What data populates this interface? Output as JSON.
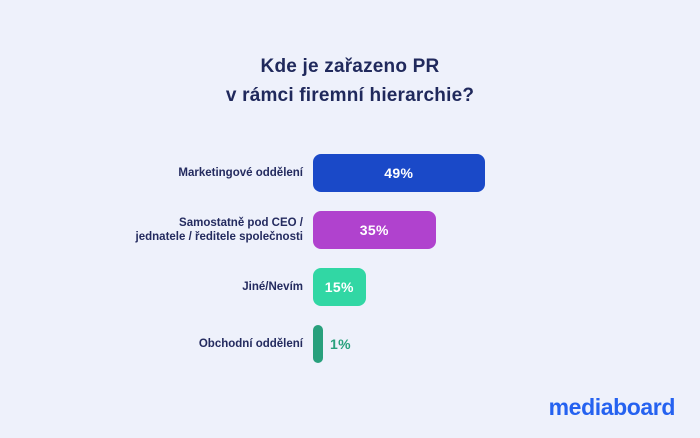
{
  "title": {
    "line1": "Kde je zařazeno PR",
    "line2": "v rámci firemní hierarchie?"
  },
  "chart_data": {
    "type": "bar",
    "orientation": "horizontal",
    "title": "Kde je zařazeno PR v rámci firemní hierarchie?",
    "categories": [
      "Marketingové oddělení",
      "Samostatně pod CEO /\njednatele / ředitele společnosti",
      "Jiné/Nevím",
      "Obchodní oddělení"
    ],
    "values": [
      49,
      35,
      15,
      1
    ],
    "value_labels": [
      "49%",
      "35%",
      "15%",
      "1%"
    ],
    "bar_colors": [
      "#1a49c8",
      "#b042ce",
      "#31d7a4",
      "#28a07c"
    ],
    "value_label_inside": [
      true,
      true,
      true,
      false
    ],
    "xlim": [
      0,
      50
    ],
    "grid": false,
    "legend": false
  },
  "branding": {
    "logo_text": "mediaboard",
    "logo_color": "#2562f0"
  },
  "colors": {
    "background": "#eef1fb",
    "text": "#20295c",
    "bar_value_text": "#ffffff"
  }
}
